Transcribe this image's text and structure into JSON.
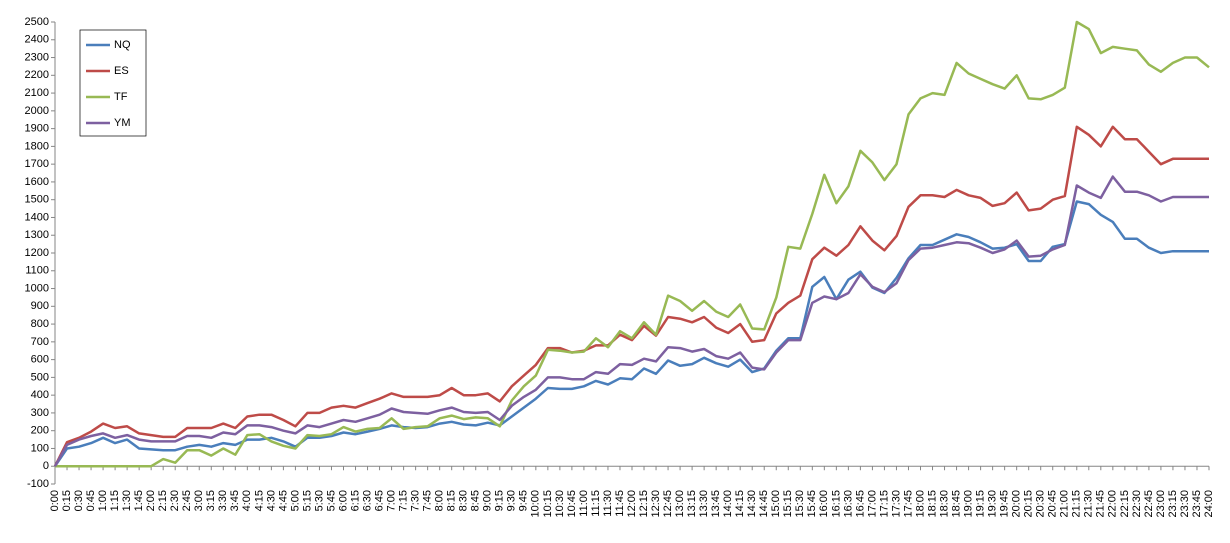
{
  "chart_data": {
    "type": "line",
    "categories": [
      "0:00",
      "0:15",
      "0:30",
      "0:45",
      "1:00",
      "1:15",
      "1:30",
      "1:45",
      "2:00",
      "2:15",
      "2:30",
      "2:45",
      "3:00",
      "3:15",
      "3:30",
      "3:45",
      "4:00",
      "4:15",
      "4:30",
      "4:45",
      "5:00",
      "5:15",
      "5:30",
      "5:45",
      "6:00",
      "6:15",
      "6:30",
      "6:45",
      "7:00",
      "7:15",
      "7:30",
      "7:45",
      "8:00",
      "8:15",
      "8:30",
      "8:45",
      "9:00",
      "9:15",
      "9:30",
      "9:45",
      "10:00",
      "10:15",
      "10:30",
      "10:45",
      "11:00",
      "11:15",
      "11:30",
      "11:45",
      "12:00",
      "12:15",
      "12:30",
      "12:45",
      "13:00",
      "13:15",
      "13:30",
      "13:45",
      "14:00",
      "14:15",
      "14:30",
      "14:45",
      "15:00",
      "15:15",
      "15:30",
      "15:45",
      "16:00",
      "16:15",
      "16:30",
      "16:45",
      "17:00",
      "17:15",
      "17:30",
      "17:45",
      "18:00",
      "18:15",
      "18:30",
      "18:45",
      "19:00",
      "19:15",
      "19:30",
      "19:45",
      "20:00",
      "20:15",
      "20:30",
      "20:45",
      "21:00",
      "21:15",
      "21:30",
      "21:45",
      "22:00",
      "22:15",
      "22:30",
      "22:45",
      "23:00",
      "23:15",
      "23:30",
      "23:45",
      "24:00"
    ],
    "series": [
      {
        "name": "NQ",
        "color": "#4a7ebb",
        "values": [
          0,
          100,
          110,
          130,
          160,
          130,
          150,
          100,
          95,
          90,
          90,
          110,
          120,
          110,
          130,
          120,
          150,
          150,
          160,
          140,
          110,
          160,
          160,
          170,
          190,
          180,
          195,
          210,
          230,
          220,
          215,
          220,
          240,
          250,
          235,
          230,
          245,
          230,
          280,
          330,
          380,
          440,
          435,
          435,
          450,
          480,
          460,
          495,
          490,
          550,
          520,
          595,
          565,
          575,
          610,
          580,
          560,
          600,
          530,
          550,
          650,
          720,
          720,
          1010,
          1065,
          940,
          1050,
          1095,
          1005,
          975,
          1060,
          1170,
          1245,
          1245,
          1275,
          1305,
          1290,
          1260,
          1225,
          1230,
          1250,
          1155,
          1155,
          1235,
          1250,
          1490,
          1475,
          1415,
          1375,
          1280,
          1280,
          1230,
          1200,
          1210,
          1210,
          1210,
          1210
        ]
      },
      {
        "name": "ES",
        "color": "#be4b48",
        "values": [
          0,
          135,
          160,
          195,
          240,
          215,
          225,
          185,
          175,
          165,
          165,
          215,
          215,
          215,
          240,
          215,
          280,
          290,
          290,
          260,
          225,
          300,
          300,
          330,
          340,
          330,
          355,
          380,
          410,
          390,
          390,
          390,
          400,
          440,
          400,
          400,
          410,
          365,
          450,
          510,
          570,
          665,
          665,
          640,
          650,
          680,
          680,
          740,
          710,
          790,
          735,
          840,
          830,
          810,
          840,
          780,
          750,
          800,
          700,
          710,
          860,
          920,
          960,
          1165,
          1230,
          1185,
          1245,
          1350,
          1270,
          1215,
          1295,
          1460,
          1525,
          1525,
          1515,
          1555,
          1525,
          1510,
          1465,
          1480,
          1540,
          1440,
          1450,
          1500,
          1520,
          1910,
          1865,
          1800,
          1910,
          1840,
          1840,
          1770,
          1700,
          1730,
          1730,
          1730,
          1730
        ]
      },
      {
        "name": "TF",
        "color": "#98b954",
        "values": [
          0,
          0,
          0,
          0,
          0,
          0,
          0,
          0,
          0,
          40,
          20,
          90,
          90,
          60,
          100,
          65,
          175,
          180,
          140,
          115,
          100,
          175,
          170,
          180,
          220,
          195,
          210,
          215,
          270,
          210,
          220,
          225,
          270,
          285,
          265,
          275,
          270,
          225,
          370,
          450,
          510,
          655,
          650,
          640,
          645,
          720,
          670,
          760,
          720,
          810,
          740,
          960,
          930,
          875,
          930,
          870,
          840,
          910,
          775,
          770,
          950,
          1235,
          1225,
          1420,
          1640,
          1480,
          1575,
          1775,
          1710,
          1610,
          1700,
          1980,
          2070,
          2100,
          2090,
          2270,
          2210,
          2180,
          2150,
          2125,
          2200,
          2070,
          2065,
          2090,
          2130,
          2500,
          2460,
          2325,
          2360,
          2350,
          2340,
          2260,
          2220,
          2270,
          2300,
          2300,
          2245
        ]
      },
      {
        "name": "YM",
        "color": "#7d60a0",
        "values": [
          0,
          120,
          150,
          170,
          185,
          160,
          175,
          150,
          140,
          140,
          140,
          170,
          170,
          160,
          190,
          180,
          230,
          230,
          220,
          200,
          185,
          230,
          220,
          240,
          260,
          250,
          270,
          290,
          325,
          305,
          300,
          295,
          315,
          330,
          305,
          300,
          305,
          260,
          340,
          390,
          430,
          500,
          500,
          490,
          490,
          530,
          520,
          575,
          570,
          605,
          590,
          670,
          665,
          645,
          660,
          620,
          605,
          640,
          555,
          545,
          640,
          710,
          710,
          920,
          955,
          940,
          975,
          1080,
          1010,
          980,
          1030,
          1160,
          1225,
          1230,
          1245,
          1260,
          1255,
          1230,
          1200,
          1220,
          1270,
          1180,
          1185,
          1220,
          1245,
          1580,
          1540,
          1510,
          1630,
          1545,
          1545,
          1525,
          1490,
          1515,
          1515,
          1515,
          1515
        ]
      }
    ],
    "ylim": [
      -100,
      2500
    ],
    "yticks": [
      -100,
      0,
      100,
      200,
      300,
      400,
      500,
      600,
      700,
      800,
      900,
      1000,
      1100,
      1200,
      1300,
      1400,
      1500,
      1600,
      1700,
      1800,
      1900,
      2000,
      2100,
      2200,
      2300,
      2400,
      2500
    ],
    "grid": false,
    "legend": "upper left"
  }
}
